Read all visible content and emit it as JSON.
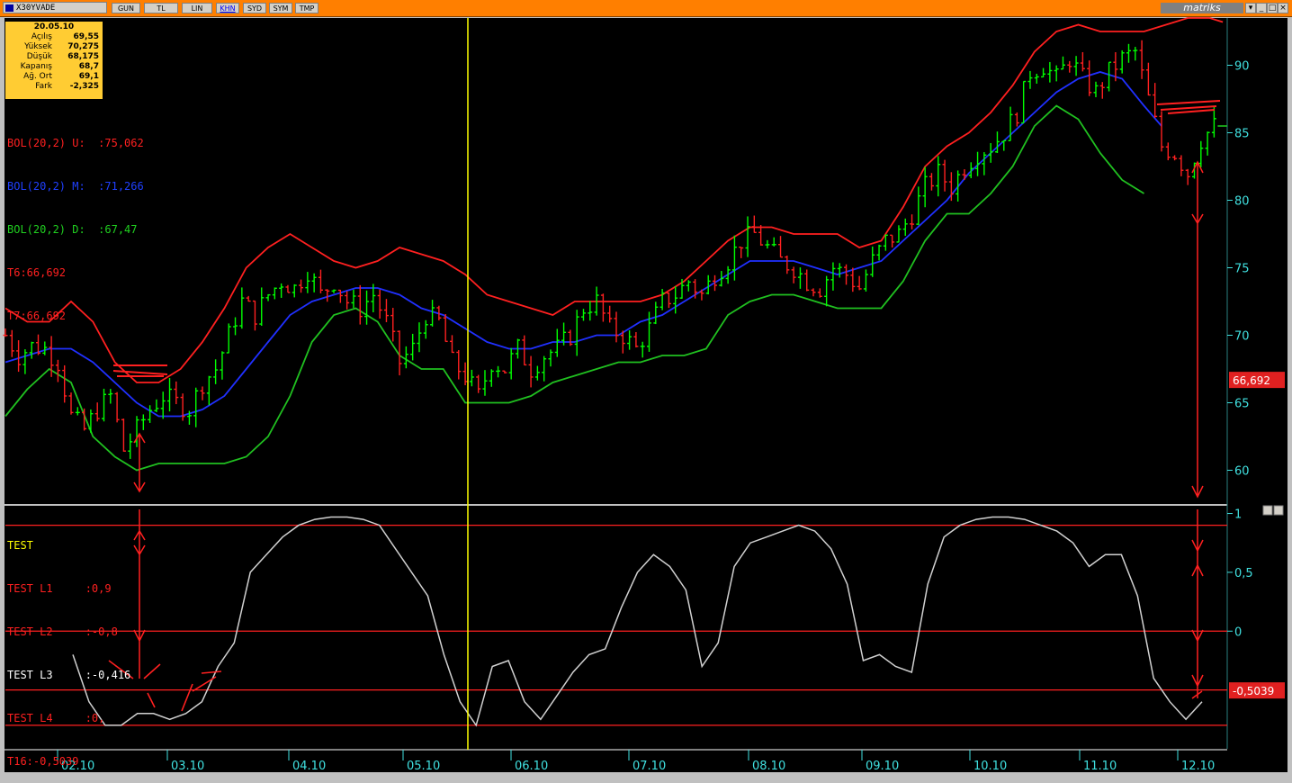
{
  "toolbar": {
    "symbol": "X30YVADE",
    "buttons": [
      "GUN",
      "TL",
      "LIN",
      "KHN",
      "SYD",
      "SYM",
      "TMP"
    ],
    "active_button": "KHN",
    "brand": "matriks",
    "dropdown_icon": "chevron-down-icon",
    "min_icon": "minimize-icon",
    "max_icon": "maximize-icon",
    "close_icon": "close-icon"
  },
  "info_box": {
    "date": "20.05.10",
    "rows": [
      {
        "label": "Açılış",
        "value": "69,55"
      },
      {
        "label": "Yüksek",
        "value": "70,275"
      },
      {
        "label": "Düşük",
        "value": "68,175"
      },
      {
        "label": "Kapanış",
        "value": "68,7"
      },
      {
        "label": "Ağ. Ort",
        "value": "69,1"
      },
      {
        "label": "Fark",
        "value": "-2,325"
      }
    ]
  },
  "price_legend": [
    {
      "text": "BOL(20,2) U:  :75,062",
      "color": "#ff2020"
    },
    {
      "text": "BOL(20,2) M:  :71,266",
      "color": "#2040ff"
    },
    {
      "text": "BOL(20,2) D:  :67,47",
      "color": "#20d020"
    },
    {
      "text": "T6:66,692",
      "color": "#ff2020"
    },
    {
      "text": "T7:66,692",
      "color": "#ff2020"
    }
  ],
  "test_legend": [
    {
      "text": "TEST",
      "color": "#ffff00"
    },
    {
      "text": "TEST L1     :0,9",
      "color": "#ff2020"
    },
    {
      "text": "TEST L2     :-0,8",
      "color": "#ff2020"
    },
    {
      "text": "TEST L3     :-0,416",
      "color": "#ffffff"
    },
    {
      "text": "TEST L4     :0,",
      "color": "#ff2020"
    },
    {
      "text": "T16:-0,5039",
      "color": "#ff2020"
    }
  ],
  "colors": {
    "upper_band": "#ff2020",
    "middle_band": "#2030ff",
    "lower_band": "#20c020",
    "up_bar": "#00ff00",
    "down_bar": "#ff2020",
    "axis_text": "#40e0e0",
    "cursor": "#ffff00",
    "oscillator": "#d0d0d0",
    "level_line": "#ff2020"
  },
  "chart_data": [
    {
      "type": "ohlc",
      "title": "X30YVADE",
      "y_ticks": [
        "60",
        "65",
        "70",
        "75",
        "80",
        "85",
        "90"
      ],
      "ylim": [
        57.5,
        93.5
      ],
      "x_ticks": [
        "02.10",
        "03.10",
        "04.10",
        "05.10",
        "06.10",
        "07.10",
        "08.10",
        "09.10",
        "10.10",
        "11.10",
        "12.10"
      ],
      "price_label": "66,692",
      "close_path": [
        [
          0,
          70.0
        ],
        [
          3,
          68.5
        ],
        [
          6,
          69.2
        ],
        [
          9,
          69.0
        ],
        [
          12,
          68.0
        ],
        [
          15,
          64.0
        ],
        [
          18,
          63.0
        ],
        [
          21,
          64.5
        ],
        [
          24,
          65.5
        ],
        [
          27,
          61.5
        ],
        [
          30,
          63.0
        ],
        [
          33,
          64.5
        ],
        [
          36,
          65.5
        ],
        [
          39,
          65.0
        ],
        [
          42,
          64.5
        ],
        [
          45,
          66.5
        ],
        [
          48,
          67.5
        ],
        [
          51,
          70.0
        ],
        [
          54,
          72.5
        ],
        [
          57,
          71.5
        ],
        [
          60,
          73.0
        ],
        [
          63,
          74.0
        ],
        [
          66,
          73.5
        ],
        [
          69,
          74.8
        ],
        [
          72,
          73.0
        ],
        [
          75,
          74.0
        ],
        [
          78,
          72.5
        ],
        [
          81,
          72.0
        ],
        [
          84,
          73.0
        ],
        [
          87,
          71.0
        ],
        [
          90,
          68.0
        ],
        [
          93,
          69.0
        ],
        [
          96,
          71.5
        ],
        [
          99,
          71.0
        ],
        [
          102,
          68.0
        ],
        [
          105,
          67.0
        ],
        [
          108,
          65.5
        ],
        [
          111,
          68.0
        ],
        [
          114,
          67.5
        ],
        [
          117,
          69.0
        ],
        [
          120,
          67.5
        ],
        [
          123,
          68.5
        ],
        [
          126,
          69.0
        ],
        [
          129,
          70.0
        ],
        [
          132,
          72.0
        ],
        [
          135,
          72.5
        ],
        [
          138,
          70.5
        ],
        [
          141,
          70.0
        ],
        [
          144,
          69.0
        ],
        [
          147,
          70.5
        ],
        [
          150,
          72.5
        ],
        [
          153,
          73.0
        ],
        [
          156,
          74.0
        ],
        [
          159,
          73.0
        ],
        [
          162,
          74.5
        ],
        [
          165,
          75.5
        ],
        [
          168,
          77.0
        ],
        [
          171,
          77.5
        ],
        [
          174,
          76.5
        ],
        [
          177,
          75.5
        ],
        [
          180,
          75.0
        ],
        [
          183,
          74.0
        ],
        [
          186,
          73.5
        ],
        [
          189,
          75.0
        ],
        [
          192,
          74.5
        ],
        [
          195,
          73.5
        ],
        [
          198,
          75.5
        ],
        [
          201,
          77.0
        ],
        [
          204,
          77.5
        ],
        [
          207,
          79.0
        ],
        [
          210,
          81.0
        ],
        [
          213,
          82.0
        ],
        [
          216,
          81.0
        ],
        [
          219,
          82.5
        ],
        [
          222,
          83.5
        ],
        [
          225,
          84.0
        ],
        [
          228,
          85.0
        ],
        [
          231,
          86.5
        ],
        [
          234,
          89.5
        ],
        [
          237,
          90.0
        ],
        [
          240,
          89.0
        ],
        [
          243,
          90.5
        ],
        [
          246,
          89.0
        ],
        [
          249,
          88.0
        ],
        [
          252,
          89.5
        ],
        [
          255,
          90.5
        ],
        [
          258,
          91.0
        ],
        [
          261,
          87.5
        ],
        [
          264,
          84.0
        ],
        [
          267,
          83.5
        ],
        [
          270,
          82.0
        ],
        [
          273,
          84.5
        ],
        [
          276,
          85.5
        ]
      ],
      "upper_band_path": [
        [
          0,
          72.0
        ],
        [
          5,
          71.0
        ],
        [
          10,
          71.0
        ],
        [
          15,
          72.5
        ],
        [
          20,
          71.0
        ],
        [
          25,
          68.0
        ],
        [
          30,
          66.5
        ],
        [
          35,
          66.5
        ],
        [
          40,
          67.5
        ],
        [
          45,
          69.5
        ],
        [
          50,
          72.0
        ],
        [
          55,
          75.0
        ],
        [
          60,
          76.5
        ],
        [
          65,
          77.5
        ],
        [
          70,
          76.5
        ],
        [
          75,
          75.5
        ],
        [
          80,
          75.0
        ],
        [
          85,
          75.5
        ],
        [
          90,
          76.5
        ],
        [
          95,
          76.0
        ],
        [
          100,
          75.5
        ],
        [
          105,
          74.5
        ],
        [
          110,
          73.0
        ],
        [
          115,
          72.5
        ],
        [
          120,
          72.0
        ],
        [
          125,
          71.5
        ],
        [
          130,
          72.5
        ],
        [
          135,
          72.5
        ],
        [
          140,
          72.5
        ],
        [
          145,
          72.5
        ],
        [
          150,
          73.0
        ],
        [
          155,
          74.0
        ],
        [
          160,
          75.5
        ],
        [
          165,
          77.0
        ],
        [
          170,
          78.0
        ],
        [
          175,
          78.0
        ],
        [
          180,
          77.5
        ],
        [
          185,
          77.5
        ],
        [
          190,
          77.5
        ],
        [
          195,
          76.5
        ],
        [
          200,
          77.0
        ],
        [
          205,
          79.5
        ],
        [
          210,
          82.5
        ],
        [
          215,
          84.0
        ],
        [
          220,
          85.0
        ],
        [
          225,
          86.5
        ],
        [
          230,
          88.5
        ],
        [
          235,
          91.0
        ],
        [
          240,
          92.5
        ],
        [
          245,
          93.0
        ],
        [
          250,
          92.5
        ],
        [
          255,
          92.5
        ],
        [
          260,
          92.5
        ],
        [
          265,
          93.0
        ],
        [
          270,
          93.5
        ],
        [
          275,
          93.5
        ],
        [
          278,
          93.2
        ]
      ],
      "middle_band_path": [
        [
          0,
          68.0
        ],
        [
          10,
          69.0
        ],
        [
          15,
          69.0
        ],
        [
          20,
          68.0
        ],
        [
          25,
          66.5
        ],
        [
          30,
          65.0
        ],
        [
          35,
          64.0
        ],
        [
          40,
          64.0
        ],
        [
          45,
          64.5
        ],
        [
          50,
          65.5
        ],
        [
          55,
          67.5
        ],
        [
          60,
          69.5
        ],
        [
          65,
          71.5
        ],
        [
          70,
          72.5
        ],
        [
          75,
          73.0
        ],
        [
          80,
          73.5
        ],
        [
          85,
          73.5
        ],
        [
          90,
          73.0
        ],
        [
          95,
          72.0
        ],
        [
          100,
          71.5
        ],
        [
          105,
          70.5
        ],
        [
          110,
          69.5
        ],
        [
          115,
          69.0
        ],
        [
          120,
          69.0
        ],
        [
          125,
          69.5
        ],
        [
          130,
          69.5
        ],
        [
          135,
          70.0
        ],
        [
          140,
          70.0
        ],
        [
          145,
          71.0
        ],
        [
          150,
          71.5
        ],
        [
          155,
          72.5
        ],
        [
          160,
          73.5
        ],
        [
          165,
          74.5
        ],
        [
          170,
          75.5
        ],
        [
          175,
          75.5
        ],
        [
          180,
          75.5
        ],
        [
          185,
          75.0
        ],
        [
          190,
          74.5
        ],
        [
          195,
          75.0
        ],
        [
          200,
          75.5
        ],
        [
          205,
          77.0
        ],
        [
          210,
          78.5
        ],
        [
          215,
          80.0
        ],
        [
          220,
          82.0
        ],
        [
          225,
          83.5
        ],
        [
          230,
          85.0
        ],
        [
          235,
          86.5
        ],
        [
          240,
          88.0
        ],
        [
          245,
          89.0
        ],
        [
          250,
          89.5
        ],
        [
          255,
          89.0
        ],
        [
          260,
          87.0
        ],
        [
          264,
          85.5
        ]
      ],
      "lower_band_path": [
        [
          0,
          64.0
        ],
        [
          5,
          66.0
        ],
        [
          10,
          67.5
        ],
        [
          15,
          66.5
        ],
        [
          20,
          62.5
        ],
        [
          25,
          61.0
        ],
        [
          30,
          60.0
        ],
        [
          35,
          60.5
        ],
        [
          40,
          60.5
        ],
        [
          45,
          60.5
        ],
        [
          50,
          60.5
        ],
        [
          55,
          61.0
        ],
        [
          60,
          62.5
        ],
        [
          65,
          65.5
        ],
        [
          70,
          69.5
        ],
        [
          75,
          71.5
        ],
        [
          80,
          72.0
        ],
        [
          85,
          71.0
        ],
        [
          90,
          68.5
        ],
        [
          95,
          67.5
        ],
        [
          100,
          67.5
        ],
        [
          105,
          65.0
        ],
        [
          110,
          65.0
        ],
        [
          115,
          65.0
        ],
        [
          120,
          65.5
        ],
        [
          125,
          66.5
        ],
        [
          130,
          67.0
        ],
        [
          135,
          67.5
        ],
        [
          140,
          68.0
        ],
        [
          145,
          68.0
        ],
        [
          150,
          68.5
        ],
        [
          155,
          68.5
        ],
        [
          160,
          69.0
        ],
        [
          165,
          71.5
        ],
        [
          170,
          72.5
        ],
        [
          175,
          73.0
        ],
        [
          180,
          73.0
        ],
        [
          185,
          72.5
        ],
        [
          190,
          72.0
        ],
        [
          195,
          72.0
        ],
        [
          200,
          72.0
        ],
        [
          205,
          74.0
        ],
        [
          210,
          77.0
        ],
        [
          215,
          79.0
        ],
        [
          220,
          79.0
        ],
        [
          225,
          80.5
        ],
        [
          230,
          82.5
        ],
        [
          235,
          85.5
        ],
        [
          240,
          87.0
        ],
        [
          245,
          86.0
        ],
        [
          250,
          83.5
        ],
        [
          255,
          81.5
        ],
        [
          260,
          80.5
        ]
      ]
    },
    {
      "type": "line",
      "title": "TEST",
      "y_ticks": [
        "1",
        "0,5",
        "0"
      ],
      "ylim": [
        -1.0,
        1.05
      ],
      "levels": [
        0.9,
        0.0,
        -0.5,
        -0.8
      ],
      "value_label": "-0,5039",
      "series_path": [
        [
          0,
          -0.2
        ],
        [
          2,
          -0.6
        ],
        [
          4,
          -0.8
        ],
        [
          6,
          -0.8
        ],
        [
          8,
          -0.7
        ],
        [
          10,
          -0.7
        ],
        [
          12,
          -0.75
        ],
        [
          14,
          -0.7
        ],
        [
          16,
          -0.6
        ],
        [
          18,
          -0.3
        ],
        [
          20,
          -0.1
        ],
        [
          22,
          0.5
        ],
        [
          24,
          0.65
        ],
        [
          26,
          0.8
        ],
        [
          28,
          0.9
        ],
        [
          30,
          0.95
        ],
        [
          32,
          0.97
        ],
        [
          34,
          0.97
        ],
        [
          36,
          0.95
        ],
        [
          38,
          0.9
        ],
        [
          40,
          0.7
        ],
        [
          42,
          0.5
        ],
        [
          44,
          0.3
        ],
        [
          46,
          -0.2
        ],
        [
          48,
          -0.6
        ],
        [
          50,
          -0.8
        ],
        [
          52,
          -0.3
        ],
        [
          54,
          -0.25
        ],
        [
          56,
          -0.6
        ],
        [
          58,
          -0.75
        ],
        [
          60,
          -0.55
        ],
        [
          62,
          -0.35
        ],
        [
          64,
          -0.2
        ],
        [
          66,
          -0.15
        ],
        [
          68,
          0.2
        ],
        [
          70,
          0.5
        ],
        [
          72,
          0.65
        ],
        [
          74,
          0.55
        ],
        [
          76,
          0.35
        ],
        [
          78,
          -0.3
        ],
        [
          80,
          -0.1
        ],
        [
          82,
          0.55
        ],
        [
          84,
          0.75
        ],
        [
          86,
          0.8
        ],
        [
          88,
          0.85
        ],
        [
          90,
          0.9
        ],
        [
          92,
          0.85
        ],
        [
          94,
          0.7
        ],
        [
          96,
          0.4
        ],
        [
          98,
          -0.25
        ],
        [
          100,
          -0.2
        ],
        [
          102,
          -0.3
        ],
        [
          104,
          -0.35
        ],
        [
          106,
          0.4
        ],
        [
          108,
          0.8
        ],
        [
          110,
          0.9
        ],
        [
          112,
          0.95
        ],
        [
          114,
          0.97
        ],
        [
          116,
          0.97
        ],
        [
          118,
          0.95
        ],
        [
          120,
          0.9
        ],
        [
          122,
          0.85
        ],
        [
          124,
          0.75
        ],
        [
          126,
          0.55
        ],
        [
          128,
          0.65
        ],
        [
          130,
          0.65
        ],
        [
          132,
          0.3
        ],
        [
          134,
          -0.4
        ],
        [
          136,
          -0.6
        ],
        [
          138,
          -0.75
        ],
        [
          140,
          -0.6
        ]
      ]
    }
  ]
}
